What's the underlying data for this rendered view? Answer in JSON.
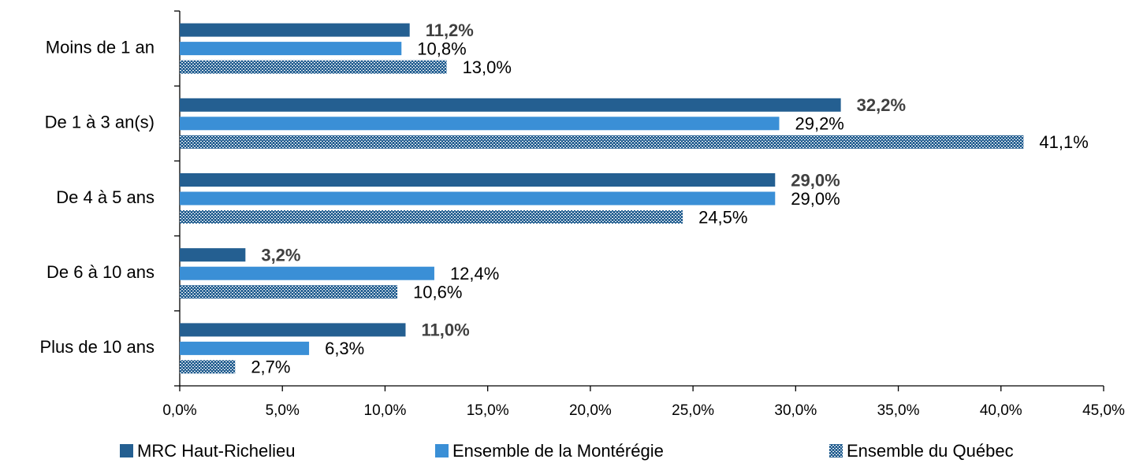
{
  "chart_data": {
    "type": "barh",
    "categories": [
      "Moins de 1 an",
      "De 1 à 3 an(s)",
      "De 4 à 5 ans",
      "De 6 à 10 ans",
      "Plus de 10 ans"
    ],
    "series": [
      {
        "name": "MRC Haut-Richelieu",
        "color": "#245f91",
        "pattern": false,
        "values": [
          11.2,
          32.2,
          29.0,
          3.2,
          11.0
        ],
        "value_labels": [
          "11,2%",
          "32,2%",
          "29,0%",
          "3,2%",
          "11,0%"
        ]
      },
      {
        "name": "Ensemble de la Montérégie",
        "color": "#3a8fd6",
        "pattern": false,
        "values": [
          10.8,
          29.2,
          29.0,
          12.4,
          6.3
        ],
        "value_labels": [
          "10,8%",
          "29,2%",
          "29,0%",
          "12,4%",
          "6,3%"
        ]
      },
      {
        "name": "Ensemble du Québec",
        "color": "#245f91",
        "pattern": true,
        "values": [
          13.0,
          41.1,
          24.5,
          10.6,
          2.7
        ],
        "value_labels": [
          "13,0%",
          "41,1%",
          "24,5%",
          "10,6%",
          "2,7%"
        ]
      }
    ],
    "xlim": [
      0,
      45
    ],
    "xticks": [
      {
        "value": 0,
        "label": "0,0%"
      },
      {
        "value": 5,
        "label": "5,0%"
      },
      {
        "value": 10,
        "label": "10,0%"
      },
      {
        "value": 15,
        "label": "15,0%"
      },
      {
        "value": 20,
        "label": "20,0%"
      },
      {
        "value": 25,
        "label": "25,0%"
      },
      {
        "value": 30,
        "label": "30,0%"
      },
      {
        "value": 35,
        "label": "35,0%"
      },
      {
        "value": 40,
        "label": "40,0%"
      },
      {
        "value": 45,
        "label": "45,0%"
      }
    ],
    "grid": false,
    "legend": "bottom"
  }
}
